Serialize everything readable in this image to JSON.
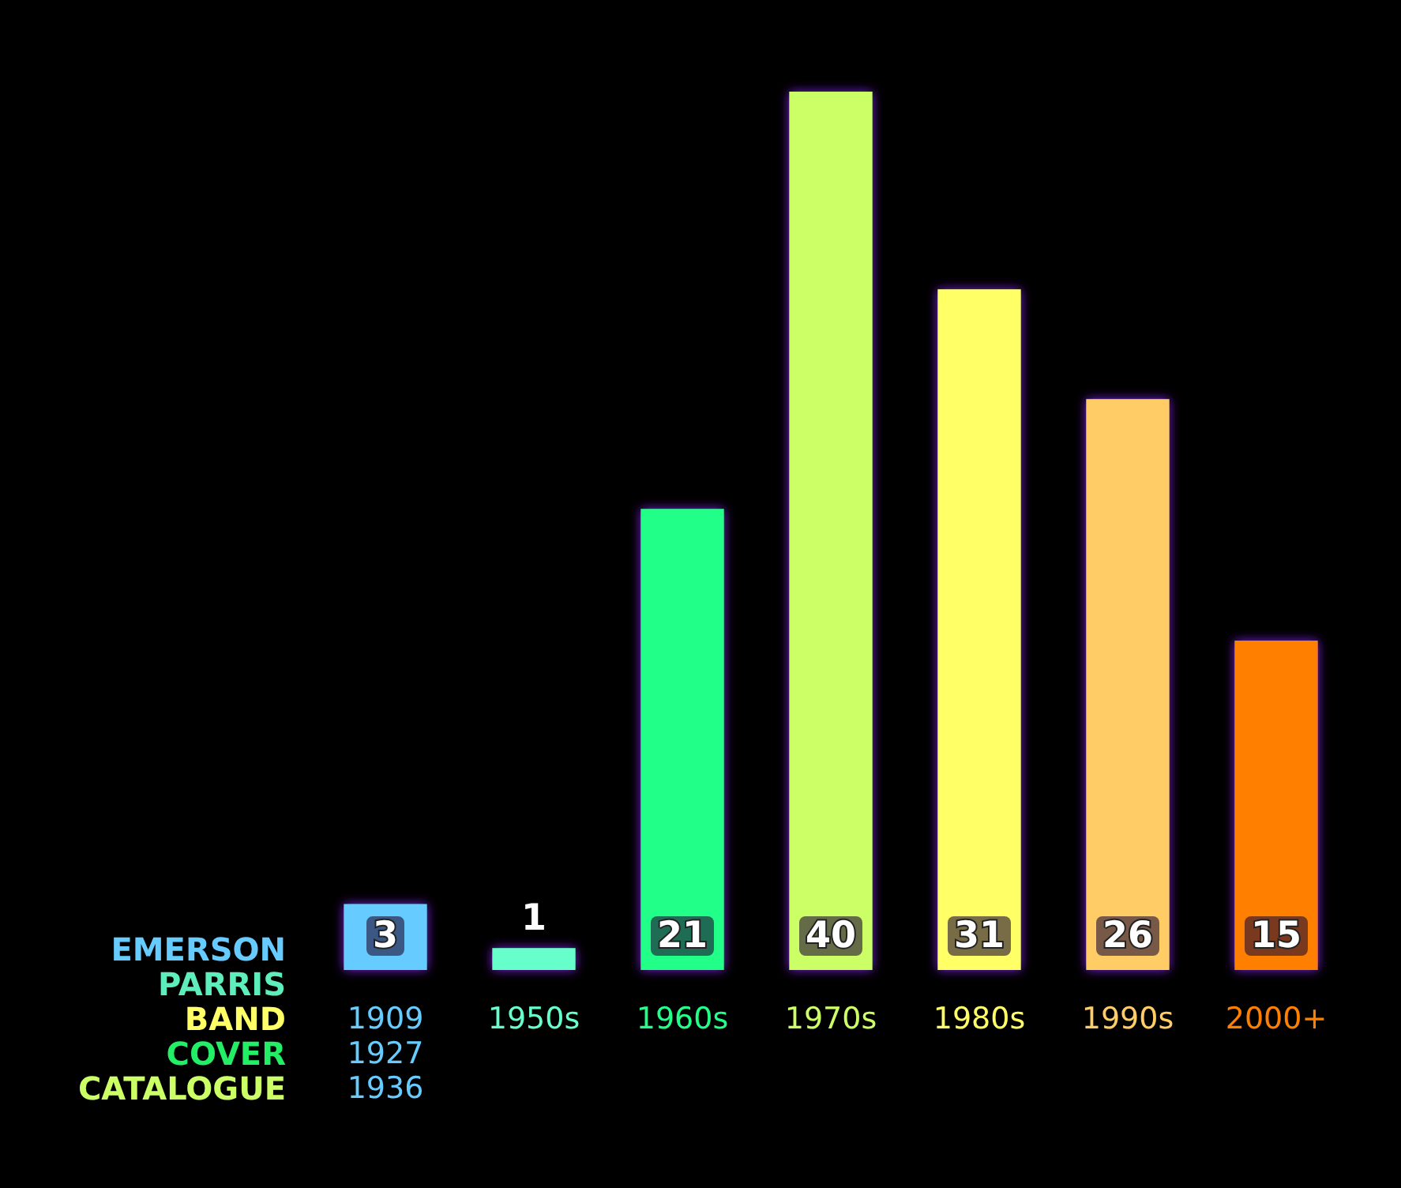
{
  "chart_data": {
    "type": "bar",
    "title": "EMERSON PARRIS BAND COVER CATALOGUE",
    "categories": [
      "1909\n1927\n1936",
      "1950s",
      "1960s",
      "1970s",
      "1980s",
      "1990s",
      "2000+"
    ],
    "values": [
      3,
      1,
      21,
      40,
      31,
      26,
      15
    ],
    "colors": [
      "#66ccff",
      "#66ffcc",
      "#22ff88",
      "#ccff66",
      "#ffff66",
      "#ffcc66",
      "#ff8000"
    ],
    "data_labels": true
  }
}
